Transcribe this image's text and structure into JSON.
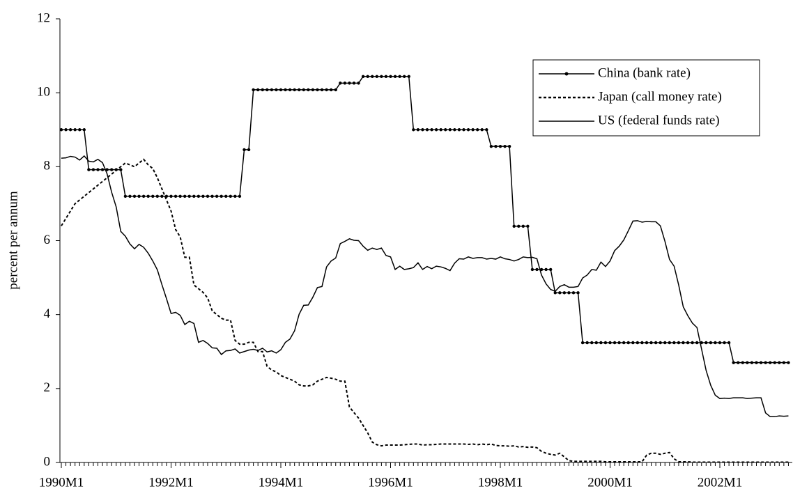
{
  "chart_data": {
    "type": "line",
    "ylabel": "percent per annum",
    "categories": [
      "1990M1",
      null,
      null,
      null,
      null,
      null,
      null,
      null,
      null,
      null,
      null,
      null,
      null,
      null,
      null,
      null,
      null,
      null,
      null,
      null,
      null,
      null,
      null,
      null,
      "1992M1",
      null,
      null,
      null,
      null,
      null,
      null,
      null,
      null,
      null,
      null,
      null,
      null,
      null,
      null,
      null,
      null,
      null,
      null,
      null,
      null,
      null,
      null,
      null,
      "1994M1",
      null,
      null,
      null,
      null,
      null,
      null,
      null,
      null,
      null,
      null,
      null,
      null,
      null,
      null,
      null,
      null,
      null,
      null,
      null,
      null,
      null,
      null,
      null,
      "1996M1",
      null,
      null,
      null,
      null,
      null,
      null,
      null,
      null,
      null,
      null,
      null,
      null,
      null,
      null,
      null,
      null,
      null,
      null,
      null,
      null,
      null,
      null,
      null,
      "1998M1",
      null,
      null,
      null,
      null,
      null,
      null,
      null,
      null,
      null,
      null,
      null,
      null,
      null,
      null,
      null,
      null,
      null,
      null,
      null,
      null,
      null,
      null,
      null,
      "2000M1",
      null,
      null,
      null,
      null,
      null,
      null,
      null,
      null,
      null,
      null,
      null,
      null,
      null,
      null,
      null,
      null,
      null,
      null,
      null,
      null,
      null,
      null,
      null,
      "2002M1",
      null,
      null,
      null,
      null,
      null,
      null,
      null,
      null,
      null,
      null,
      null,
      null,
      null,
      null,
      null
    ],
    "ylim": [
      0,
      12
    ],
    "yticks": [
      0,
      2,
      4,
      6,
      8,
      10,
      12
    ],
    "legend": "upper right",
    "series": [
      {
        "name": "China (bank rate)",
        "color": "#000000",
        "style": "solid",
        "marker": "dot",
        "values": [
          9,
          9,
          9,
          9,
          9,
          9,
          7.92,
          7.92,
          7.92,
          7.92,
          7.92,
          7.92,
          7.92,
          7.92,
          7.2,
          7.2,
          7.2,
          7.2,
          7.2,
          7.2,
          7.2,
          7.2,
          7.2,
          7.2,
          7.2,
          7.2,
          7.2,
          7.2,
          7.2,
          7.2,
          7.2,
          7.2,
          7.2,
          7.2,
          7.2,
          7.2,
          7.2,
          7.2,
          7.2,
          7.2,
          8.46,
          8.46,
          10.08,
          10.08,
          10.08,
          10.08,
          10.08,
          10.08,
          10.08,
          10.08,
          10.08,
          10.08,
          10.08,
          10.08,
          10.08,
          10.08,
          10.08,
          10.08,
          10.08,
          10.08,
          10.08,
          10.26,
          10.26,
          10.26,
          10.26,
          10.26,
          10.44,
          10.44,
          10.44,
          10.44,
          10.44,
          10.44,
          10.44,
          10.44,
          10.44,
          10.44,
          10.44,
          9,
          9,
          9,
          9,
          9,
          9,
          9,
          9,
          9,
          9,
          9,
          9,
          9,
          9,
          9,
          9,
          9,
          8.55,
          8.55,
          8.55,
          8.55,
          8.55,
          6.39,
          6.39,
          6.39,
          6.39,
          5.22,
          5.22,
          5.22,
          5.22,
          5.22,
          4.59,
          4.59,
          4.59,
          4.59,
          4.59,
          4.59,
          3.24,
          3.24,
          3.24,
          3.24,
          3.24,
          3.24,
          3.24,
          3.24,
          3.24,
          3.24,
          3.24,
          3.24,
          3.24,
          3.24,
          3.24,
          3.24,
          3.24,
          3.24,
          3.24,
          3.24,
          3.24,
          3.24,
          3.24,
          3.24,
          3.24,
          3.24,
          3.24,
          3.24,
          3.24,
          3.24,
          3.24,
          3.24,
          3.24,
          2.7,
          2.7,
          2.7,
          2.7,
          2.7,
          2.7,
          2.7,
          2.7,
          2.7,
          2.7,
          2.7,
          2.7,
          2.7
        ]
      },
      {
        "name": "Japan (call money rate)",
        "color": "#000000",
        "style": "dotted",
        "marker": "none",
        "values": [
          6.4,
          6.6,
          6.8,
          7.0,
          7.1,
          7.2,
          7.3,
          7.4,
          7.5,
          7.6,
          7.7,
          7.8,
          7.9,
          8.0,
          8.1,
          8.05,
          8.0,
          8.1,
          8.2,
          8.05,
          7.95,
          7.7,
          7.4,
          7.1,
          6.8,
          6.3,
          6.1,
          5.55,
          5.55,
          4.8,
          4.7,
          4.6,
          4.45,
          4.1,
          4.0,
          3.9,
          3.85,
          3.85,
          3.3,
          3.2,
          3.2,
          3.25,
          3.25,
          3.0,
          3.0,
          2.6,
          2.5,
          2.45,
          2.35,
          2.3,
          2.25,
          2.2,
          2.1,
          2.07,
          2.07,
          2.1,
          2.2,
          2.25,
          2.3,
          2.28,
          2.25,
          2.2,
          2.2,
          1.5,
          1.35,
          1.2,
          1.0,
          0.8,
          0.55,
          0.48,
          0.45,
          0.47,
          0.47,
          0.47,
          0.47,
          0.48,
          0.49,
          0.5,
          0.5,
          0.47,
          0.48,
          0.48,
          0.49,
          0.5,
          0.5,
          0.5,
          0.5,
          0.5,
          0.5,
          0.49,
          0.5,
          0.48,
          0.5,
          0.48,
          0.5,
          0.46,
          0.45,
          0.45,
          0.44,
          0.45,
          0.42,
          0.43,
          0.41,
          0.42,
          0.4,
          0.3,
          0.25,
          0.22,
          0.2,
          0.25,
          0.15,
          0.05,
          0.03,
          0.03,
          0.03,
          0.03,
          0.03,
          0.03,
          0.03,
          0.02,
          0.02,
          0.02,
          0.02,
          0.02,
          0.02,
          0.02,
          0.02,
          0.02,
          0.2,
          0.25,
          0.25,
          0.22,
          0.25,
          0.27,
          0.1,
          0.02,
          0.02,
          0.02,
          0.01,
          0.01,
          0.01,
          0.01,
          0.01,
          0.01,
          0.01,
          0.01,
          0.01,
          0.01,
          0.01,
          0.01,
          0.01,
          0.01,
          0.01,
          0.01,
          0.01,
          0.01,
          0.01,
          0.01,
          0.01,
          0.01
        ]
      },
      {
        "name": "US (federal funds rate)",
        "color": "#000000",
        "style": "solid",
        "marker": "none",
        "values": [
          8.23,
          8.24,
          8.28,
          8.26,
          8.18,
          8.29,
          8.15,
          8.13,
          8.2,
          8.11,
          7.81,
          7.31,
          6.91,
          6.25,
          6.12,
          5.91,
          5.78,
          5.9,
          5.82,
          5.66,
          5.45,
          5.21,
          4.81,
          4.43,
          4.03,
          4.06,
          3.98,
          3.73,
          3.82,
          3.76,
          3.25,
          3.3,
          3.22,
          3.1,
          3.09,
          2.92,
          3.02,
          3.03,
          3.07,
          2.96,
          3.0,
          3.04,
          3.06,
          3.03,
          3.09,
          2.99,
          3.02,
          2.96,
          3.05,
          3.25,
          3.34,
          3.56,
          4.01,
          4.25,
          4.26,
          4.47,
          4.73,
          4.76,
          5.29,
          5.45,
          5.53,
          5.92,
          5.98,
          6.05,
          6.01,
          6.0,
          5.85,
          5.74,
          5.8,
          5.76,
          5.8,
          5.6,
          5.56,
          5.22,
          5.31,
          5.22,
          5.24,
          5.27,
          5.4,
          5.22,
          5.3,
          5.24,
          5.31,
          5.29,
          5.25,
          5.19,
          5.39,
          5.51,
          5.5,
          5.56,
          5.52,
          5.54,
          5.54,
          5.5,
          5.52,
          5.5,
          5.56,
          5.51,
          5.49,
          5.45,
          5.49,
          5.56,
          5.54,
          5.55,
          5.51,
          5.07,
          4.83,
          4.68,
          4.63,
          4.76,
          4.81,
          4.74,
          4.74,
          4.76,
          4.99,
          5.07,
          5.22,
          5.2,
          5.42,
          5.3,
          5.45,
          5.73,
          5.85,
          6.02,
          6.27,
          6.53,
          6.54,
          6.5,
          6.52,
          6.51,
          6.51,
          6.4,
          5.98,
          5.49,
          5.31,
          4.8,
          4.21,
          3.97,
          3.77,
          3.65,
          3.07,
          2.49,
          2.09,
          1.82,
          1.73,
          1.74,
          1.73,
          1.75,
          1.75,
          1.75,
          1.73,
          1.74,
          1.75,
          1.75,
          1.34,
          1.24,
          1.24,
          1.26,
          1.25,
          1.26
        ]
      }
    ]
  }
}
